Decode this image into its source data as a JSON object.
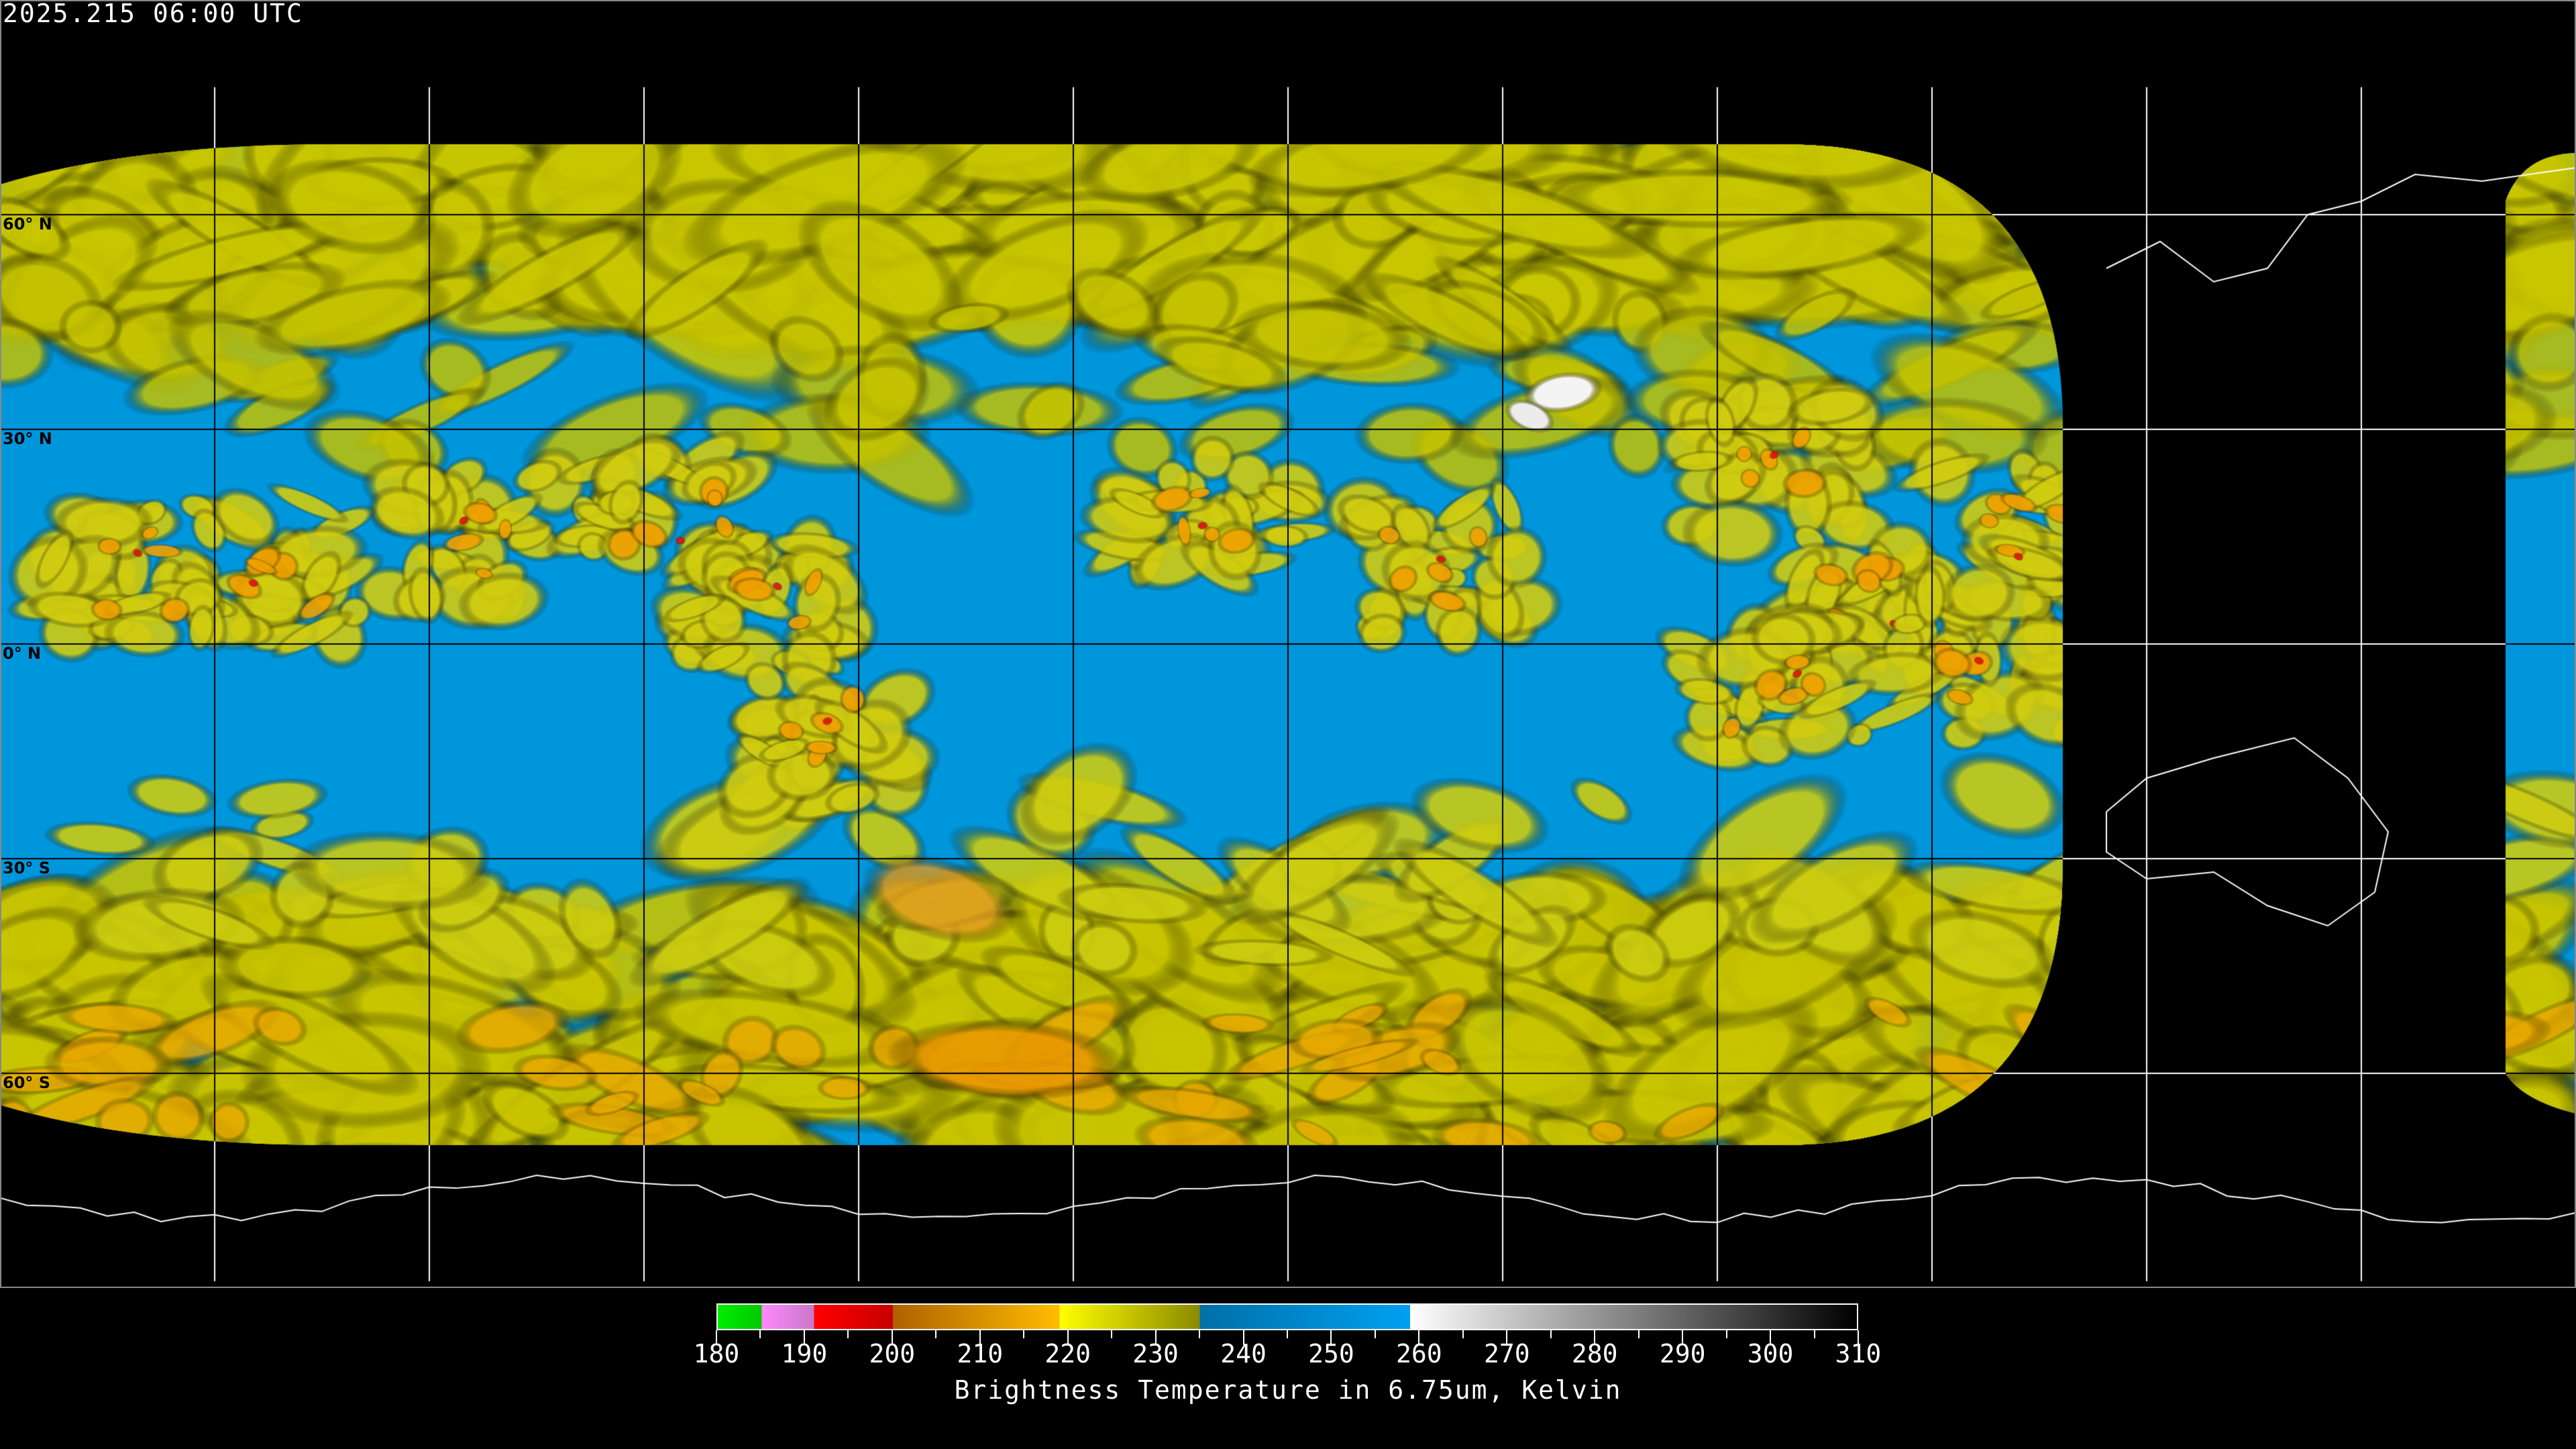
{
  "title": "2025.215 06:00 UTC",
  "lat_labels": [
    "60° N",
    "30° N",
    "0° N",
    "30° S",
    "60° S"
  ],
  "map": {
    "projection": "equirectangular",
    "graticule_spacing_deg": 30,
    "coastlines": true
  },
  "colorbar": {
    "min": 180,
    "max": 310,
    "ticks": [
      "180",
      "190",
      "200",
      "210",
      "220",
      "230",
      "240",
      "250",
      "260",
      "270",
      "280",
      "290",
      "300",
      "310"
    ],
    "label": "Brightness Temperature in 6.75um, Kelvin",
    "segments": [
      {
        "from": 180,
        "to": 185,
        "colors": [
          "#00ee00",
          "#00c800"
        ]
      },
      {
        "from": 185,
        "to": 191,
        "colors": [
          "#ff88ff",
          "#c878c8"
        ]
      },
      {
        "from": 191,
        "to": 200,
        "colors": [
          "#ff0000",
          "#c80000"
        ]
      },
      {
        "from": 200,
        "to": 219,
        "colors": [
          "#b06000",
          "#ffbc00"
        ]
      },
      {
        "from": 219,
        "to": 235,
        "colors": [
          "#ffff00",
          "#8a8a00"
        ]
      },
      {
        "from": 235,
        "to": 259,
        "colors": [
          "#0070a8",
          "#00a0f0"
        ]
      },
      {
        "from": 259,
        "to": 310,
        "colors": [
          "#ffffff",
          "#000000"
        ]
      }
    ]
  },
  "colors": {
    "dry_blue": "#0096dc",
    "moist_yellow": "#c8c800",
    "cold_orange": "#f0a000",
    "very_cold_red": "#e01010"
  }
}
